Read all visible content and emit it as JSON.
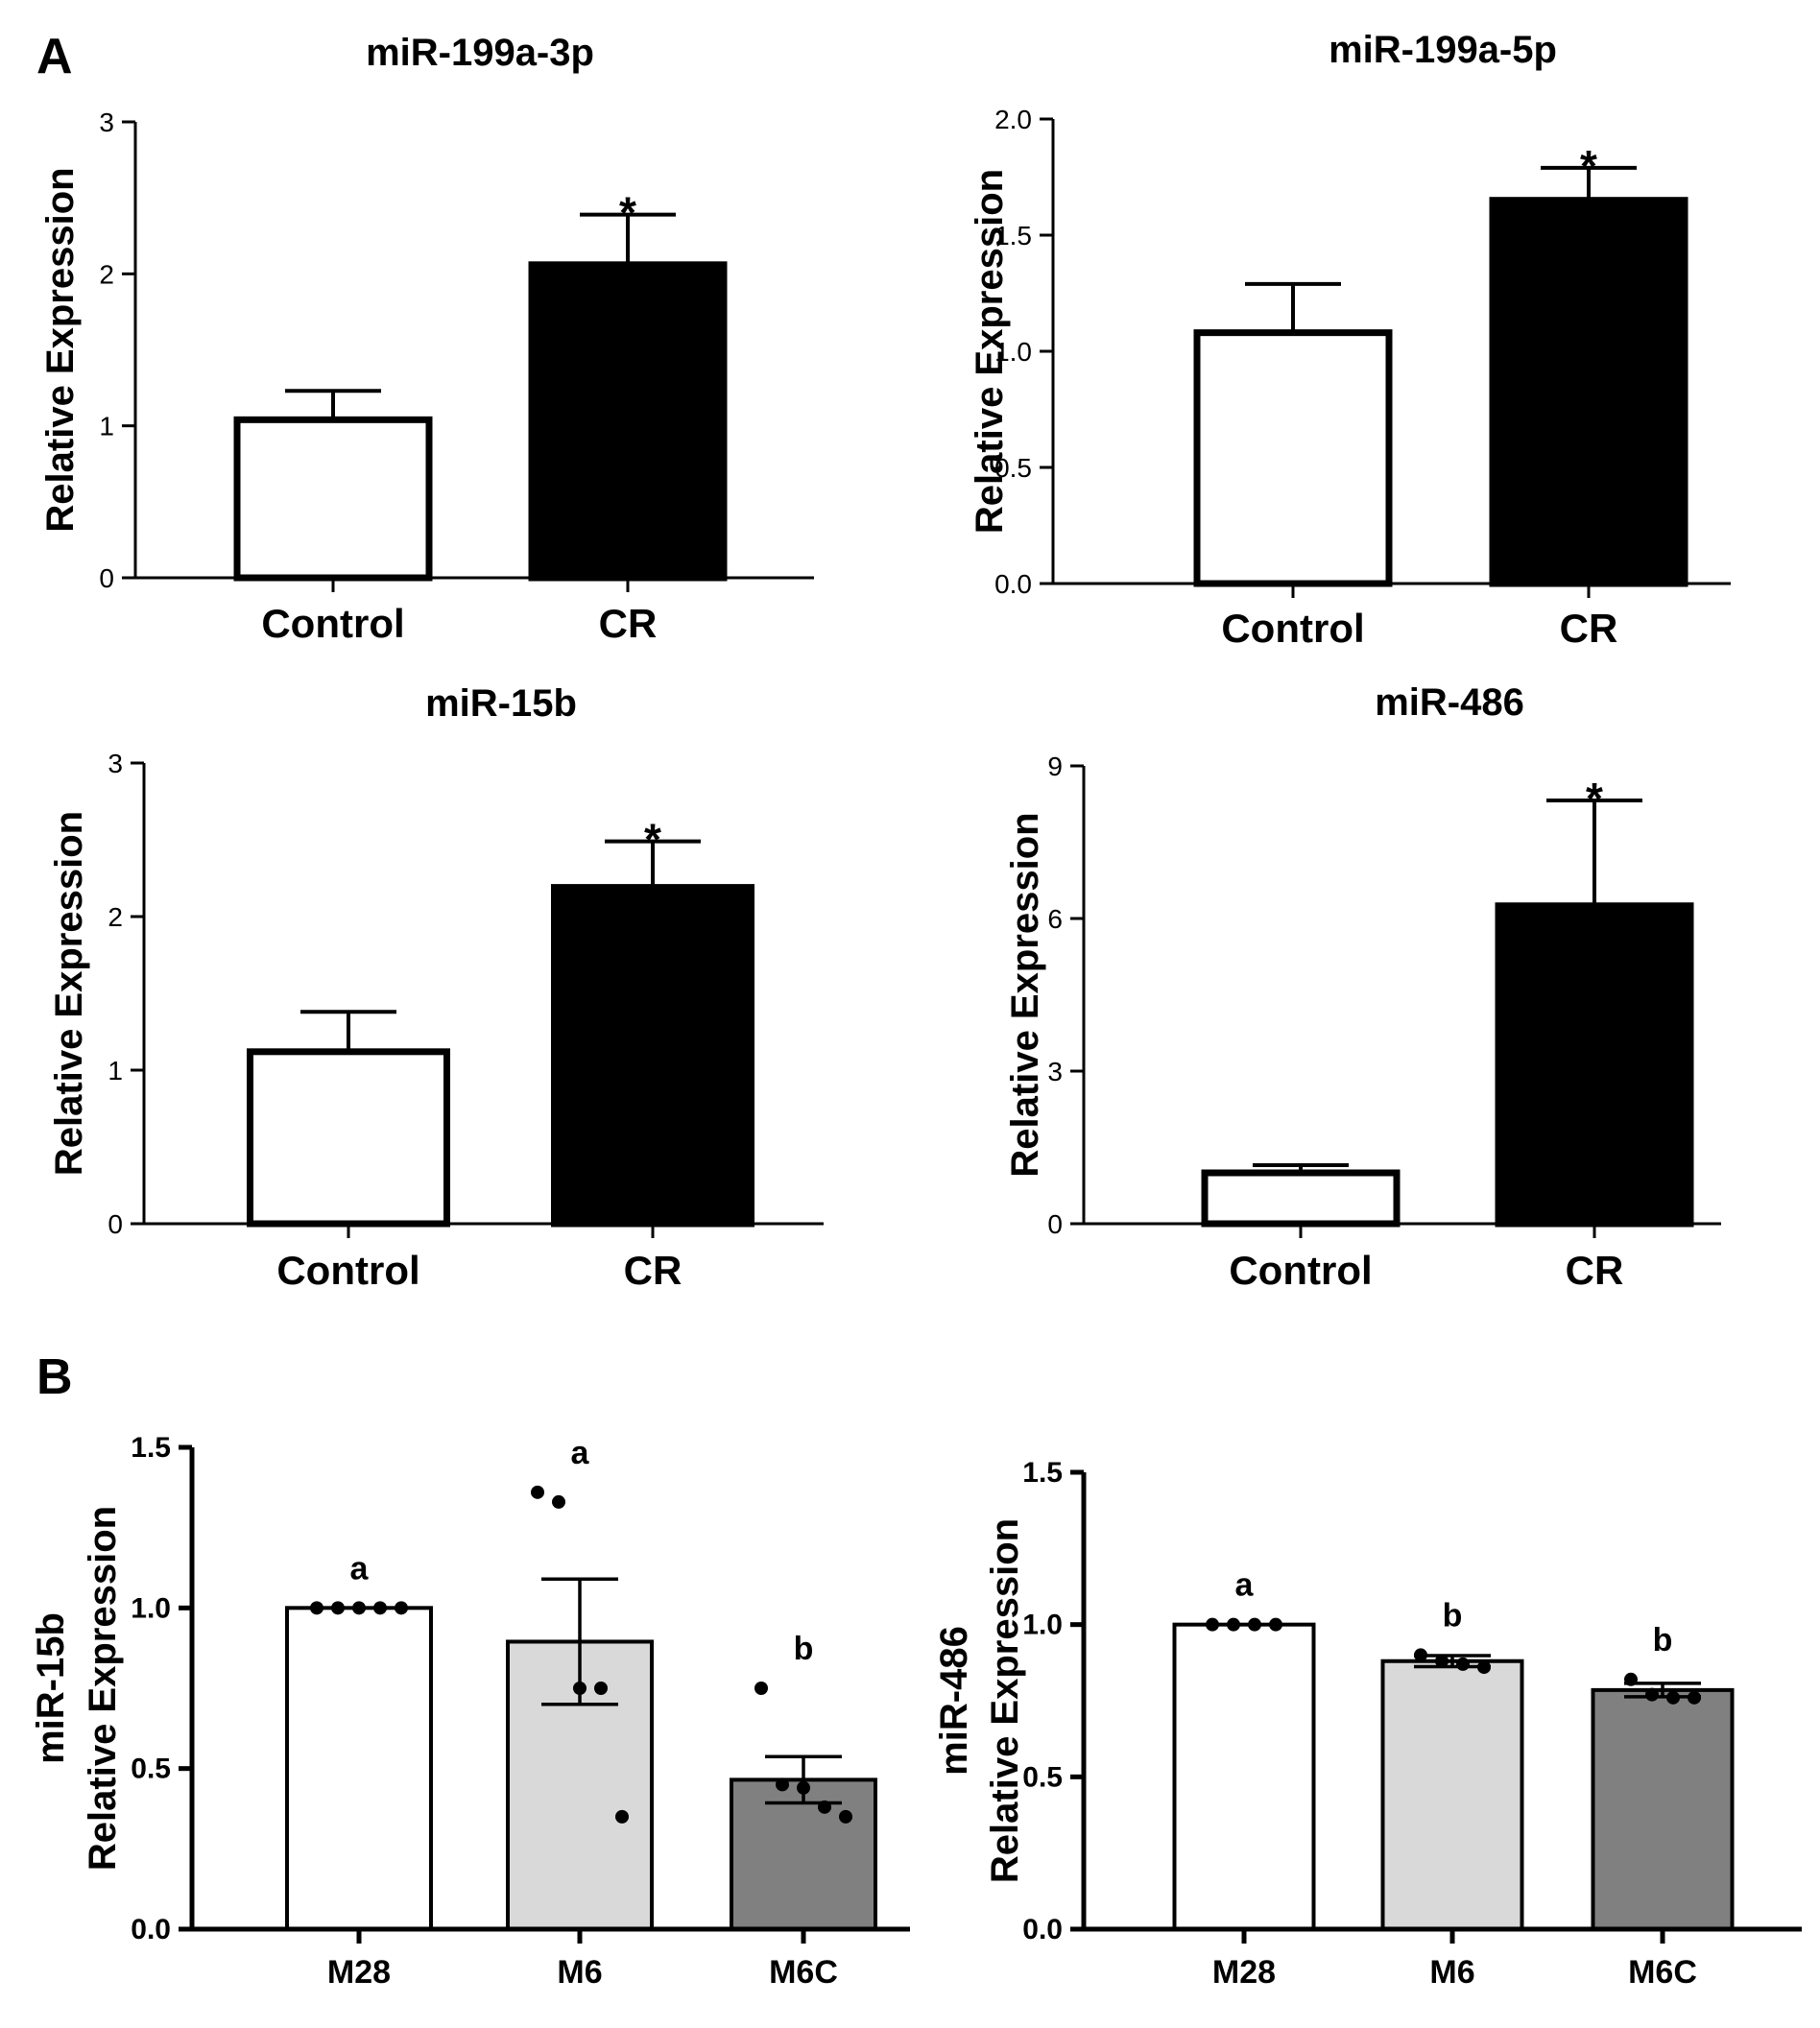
{
  "panels": [
    "A",
    "B"
  ],
  "chart_data": [
    {
      "type": "bar",
      "panel": "A",
      "title": "miR-199a-3p",
      "ylabel": "Relative Expression",
      "xlabel": "",
      "categories": [
        "Control",
        "CR"
      ],
      "values": [
        1.04,
        2.06
      ],
      "errors": [
        0.19,
        0.33
      ],
      "fills": [
        "#ffffff",
        "#000000"
      ],
      "annotations": [
        "",
        "*"
      ],
      "ylim": [
        0,
        3
      ],
      "ticks": [
        0,
        1,
        2,
        3
      ],
      "tick_labels": [
        "0",
        "1",
        "2",
        "3"
      ],
      "grid": false
    },
    {
      "type": "bar",
      "panel": "A",
      "title": "miR-199a-5p",
      "ylabel": "Relative Expression",
      "xlabel": "",
      "categories": [
        "Control",
        "CR"
      ],
      "values": [
        1.08,
        1.65
      ],
      "errors": [
        0.21,
        0.14
      ],
      "fills": [
        "#ffffff",
        "#000000"
      ],
      "annotations": [
        "",
        "*"
      ],
      "ylim": [
        0,
        2
      ],
      "ticks": [
        0,
        0.5,
        1,
        1.5,
        2
      ],
      "tick_labels": [
        "0.0",
        "0.5",
        "1.0",
        "1.5",
        "2.0"
      ],
      "grid": false
    },
    {
      "type": "bar",
      "panel": "A",
      "title": "miR-15b",
      "ylabel": "Relative Expression",
      "xlabel": "",
      "categories": [
        "Control",
        "CR"
      ],
      "values": [
        1.12,
        2.19
      ],
      "errors": [
        0.26,
        0.3
      ],
      "fills": [
        "#ffffff",
        "#000000"
      ],
      "annotations": [
        "",
        "*"
      ],
      "ylim": [
        0,
        3
      ],
      "ticks": [
        0,
        1,
        2,
        3
      ],
      "tick_labels": [
        "0",
        "1",
        "2",
        "3"
      ],
      "grid": false
    },
    {
      "type": "bar",
      "panel": "A",
      "title": "miR-486",
      "ylabel": "Relative Expression",
      "xlabel": "",
      "categories": [
        "Control",
        "CR"
      ],
      "values": [
        1.0,
        6.25
      ],
      "errors": [
        0.15,
        2.07
      ],
      "fills": [
        "#ffffff",
        "#000000"
      ],
      "annotations": [
        "",
        "*"
      ],
      "ylim": [
        0,
        9
      ],
      "ticks": [
        0,
        3,
        6,
        9
      ],
      "tick_labels": [
        "0",
        "3",
        "6",
        "9"
      ],
      "grid": false
    },
    {
      "type": "bar",
      "panel": "B",
      "title": "",
      "ylabel": "Relative Expression",
      "ylabel_top": "miR-15b",
      "xlabel": "",
      "categories": [
        "M28",
        "M6",
        "M6C"
      ],
      "values": [
        1.0,
        0.895,
        0.465
      ],
      "errors": [
        0.0,
        0.195,
        0.072
      ],
      "fills": [
        "#ffffff",
        "#d9d9d9",
        "#808080"
      ],
      "annotations": [
        "a",
        "a",
        "b"
      ],
      "points": [
        [
          1.0,
          1.0,
          1.0,
          1.0,
          1.0
        ],
        [
          1.36,
          1.33,
          0.75,
          0.75,
          0.35
        ],
        [
          0.75,
          0.45,
          0.44,
          0.38,
          0.35
        ]
      ],
      "ylim": [
        0,
        1.5
      ],
      "ticks": [
        0,
        0.5,
        1,
        1.5
      ],
      "tick_labels": [
        "0.0",
        "0.5",
        "1.0",
        "1.5"
      ],
      "grid": false
    },
    {
      "type": "bar",
      "panel": "B",
      "title": "",
      "ylabel": "Relative Expression",
      "ylabel_top": "miR-486",
      "xlabel": "",
      "categories": [
        "M28",
        "M6",
        "M6C"
      ],
      "values": [
        1.0,
        0.88,
        0.785
      ],
      "errors": [
        0.0,
        0.018,
        0.022
      ],
      "fills": [
        "#ffffff",
        "#d9d9d9",
        "#808080"
      ],
      "annotations": [
        "a",
        "b",
        "b"
      ],
      "points": [
        [
          1.0,
          1.0,
          1.0,
          1.0
        ],
        [
          0.9,
          0.88,
          0.87,
          0.86
        ],
        [
          0.82,
          0.77,
          0.76,
          0.76
        ]
      ],
      "ylim": [
        0,
        1.5
      ],
      "ticks": [
        0,
        0.5,
        1,
        1.5
      ],
      "tick_labels": [
        "0.0",
        "0.5",
        "1.0",
        "1.5"
      ],
      "grid": false
    }
  ]
}
